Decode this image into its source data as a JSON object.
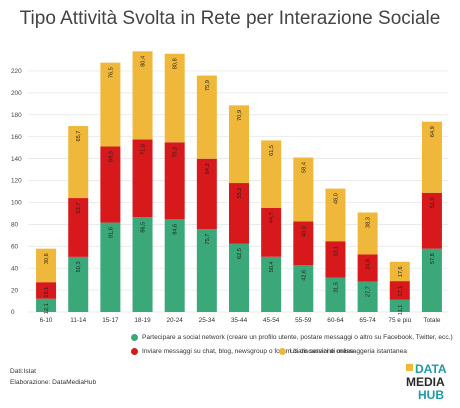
{
  "chart_data": {
    "type": "bar",
    "stacked": true,
    "title": "Tipo Attività Svolta in Rete per Interazione Sociale",
    "xlabel": "",
    "ylabel": "",
    "ylim": [
      0,
      230
    ],
    "yticks": [
      0,
      20,
      40,
      60,
      80,
      100,
      120,
      140,
      160,
      180,
      200,
      220
    ],
    "grid": true,
    "legend_position": "bottom",
    "categories": [
      "6-10",
      "11-14",
      "15-17",
      "18-19",
      "20-24",
      "25-34",
      "35-44",
      "45-54",
      "55-59",
      "60-64",
      "65-74",
      "75 e più",
      "Totale"
    ],
    "series": [
      {
        "name": "Partecipare a social network (creare un profilo utente, postare messaggi o altro su Facebook, Twitter, ecc.)",
        "color": "#3aa879",
        "values": [
          12.1,
          50.3,
          81.6,
          86.5,
          84.6,
          75.7,
          62.5,
          50.4,
          42.6,
          31.5,
          27.7,
          11.1,
          57.8
        ],
        "labels": [
          "12,1",
          "50,3",
          "81,6",
          "86,5",
          "84,6",
          "75,7",
          "62,5",
          "50,4",
          "42,6",
          "31,5",
          "27,7",
          "11,1",
          "57,8"
        ]
      },
      {
        "name": "Inviare messaggi su chat, blog, newsgroup o forum di discussione online",
        "color": "#d7191c",
        "values": [
          15.1,
          53.7,
          69.5,
          71.0,
          70.3,
          64.2,
          55.2,
          44.7,
          40.0,
          33.1,
          24.8,
          17.1,
          51.0
        ],
        "labels": [
          "15,1",
          "53,7",
          "69,5",
          "71,0",
          "70,3",
          "64,2",
          "55,2",
          "44,7",
          "40,0",
          "33,1",
          "24,8",
          "17,1",
          "51,0"
        ]
      },
      {
        "name": "Usare servizi di messaggeria istantanea",
        "color": "#f0b83a",
        "values": [
          30.6,
          65.7,
          76.5,
          80.4,
          80.8,
          75.9,
          70.9,
          61.5,
          58.4,
          48.0,
          38.3,
          17.6,
          64.9
        ],
        "labels": [
          "30,6",
          "65,7",
          "76,5",
          "80,4",
          "80,8",
          "75,9",
          "70,9",
          "61,5",
          "58,4",
          "48,0",
          "38,3",
          "17,6",
          "64,9"
        ]
      }
    ]
  },
  "source": "Dati:Istat",
  "elaboration": "Elaborazione: DataMediaHub",
  "logo": {
    "line1": "DATA",
    "line2": "MEDIA",
    "line3": "HUB",
    "colors": {
      "teal": "#1f9aa8",
      "dark": "#2a2a2a",
      "accent": "#f0b83a"
    }
  }
}
